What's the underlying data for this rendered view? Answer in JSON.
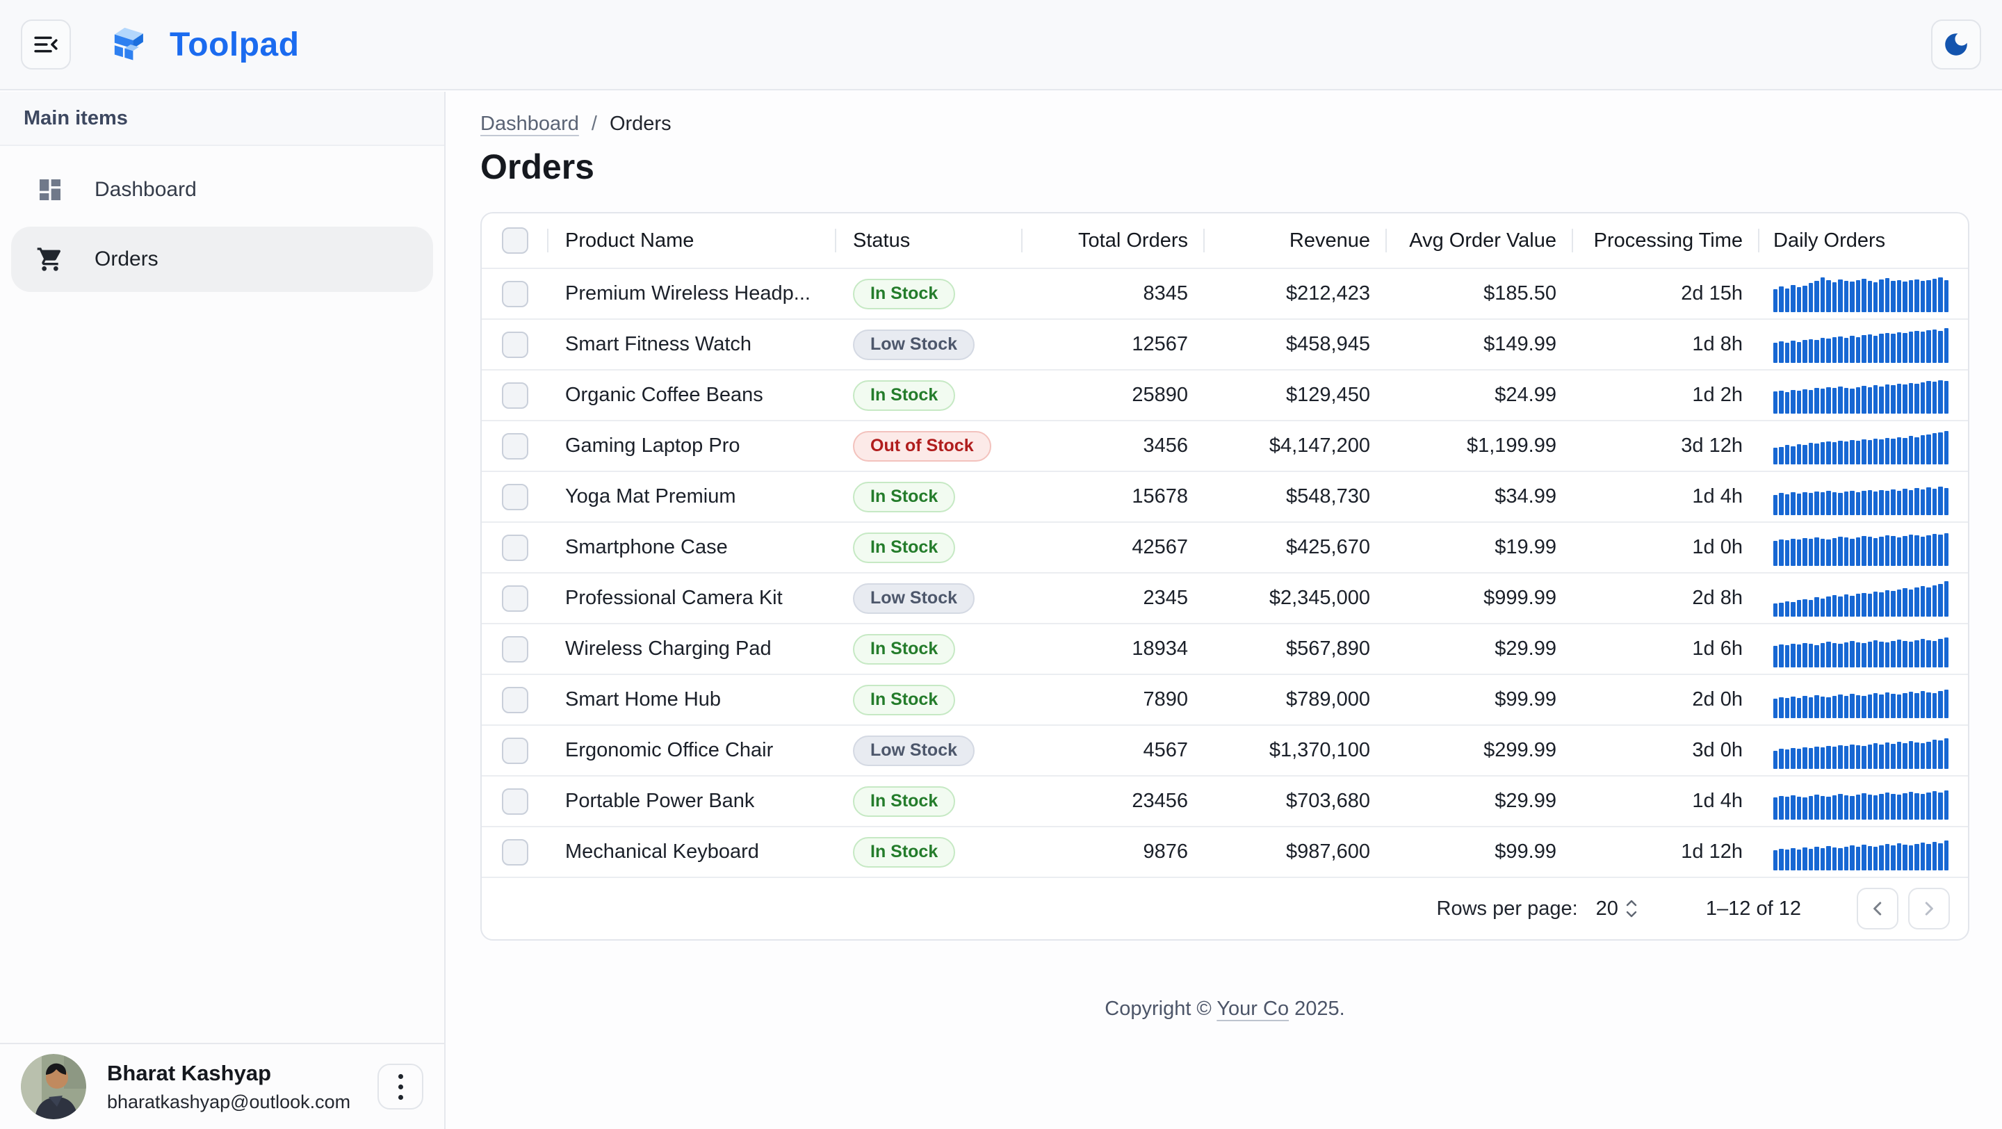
{
  "appbar": {
    "brand": "Toolpad",
    "menu_icon": "menu-collapse",
    "theme_icon": "dark-mode-moon"
  },
  "sidebar": {
    "section_label": "Main items",
    "items": [
      {
        "label": "Dashboard",
        "icon": "dashboard-icon",
        "selected": false
      },
      {
        "label": "Orders",
        "icon": "cart-icon",
        "selected": true
      }
    ],
    "user": {
      "name": "Bharat Kashyap",
      "email": "bharatkashyap@outlook.com"
    }
  },
  "breadcrumb": {
    "parent": "Dashboard",
    "separator": "/",
    "current": "Orders"
  },
  "page": {
    "title": "Orders"
  },
  "table": {
    "columns": [
      "Product Name",
      "Status",
      "Total Orders",
      "Revenue",
      "Avg Order Value",
      "Processing Time",
      "Daily Orders"
    ],
    "rows": [
      {
        "product": "Premium Wireless Headp...",
        "status": "In Stock",
        "status_type": "in",
        "total_orders": "8345",
        "revenue": "$212,423",
        "avg_order_value": "$185.50",
        "processing_time": "2d 15h",
        "spark": [
          62,
          70,
          65,
          75,
          68,
          72,
          80,
          85,
          95,
          88,
          82,
          90,
          86,
          84,
          88,
          92,
          86,
          82,
          90,
          94,
          85,
          88,
          83,
          87,
          90,
          85,
          88,
          92,
          95,
          87
        ]
      },
      {
        "product": "Smart Fitness Watch",
        "status": "Low Stock",
        "status_type": "low",
        "total_orders": "12567",
        "revenue": "$458,945",
        "avg_order_value": "$149.99",
        "processing_time": "1d 8h",
        "spark": [
          55,
          58,
          54,
          60,
          57,
          62,
          65,
          63,
          68,
          66,
          70,
          72,
          69,
          74,
          71,
          76,
          78,
          74,
          79,
          82,
          80,
          84,
          81,
          86,
          88,
          85,
          90,
          92,
          88,
          95
        ]
      },
      {
        "product": "Organic Coffee Beans",
        "status": "In Stock",
        "status_type": "in",
        "total_orders": "25890",
        "revenue": "$129,450",
        "avg_order_value": "$24.99",
        "processing_time": "1d 2h",
        "spark": [
          60,
          63,
          58,
          65,
          62,
          66,
          64,
          70,
          68,
          72,
          70,
          74,
          71,
          68,
          73,
          76,
          72,
          78,
          75,
          80,
          77,
          82,
          79,
          84,
          81,
          86,
          90,
          87,
          92,
          89
        ]
      },
      {
        "product": "Gaming Laptop Pro",
        "status": "Out of Stock",
        "status_type": "out",
        "total_orders": "3456",
        "revenue": "$4,147,200",
        "avg_order_value": "$1,199.99",
        "processing_time": "3d 12h",
        "spark": [
          45,
          48,
          52,
          50,
          55,
          53,
          58,
          56,
          60,
          63,
          60,
          65,
          62,
          67,
          64,
          69,
          66,
          71,
          68,
          73,
          70,
          75,
          72,
          77,
          74,
          79,
          82,
          85,
          88,
          92
        ]
      },
      {
        "product": "Yoga Mat Premium",
        "status": "In Stock",
        "status_type": "in",
        "total_orders": "15678",
        "revenue": "$548,730",
        "avg_order_value": "$34.99",
        "processing_time": "1d 4h",
        "spark": [
          55,
          60,
          57,
          62,
          58,
          63,
          60,
          65,
          62,
          66,
          63,
          60,
          64,
          67,
          62,
          66,
          68,
          64,
          69,
          66,
          70,
          67,
          72,
          69,
          74,
          71,
          76,
          73,
          78,
          75
        ]
      },
      {
        "product": "Smartphone Case",
        "status": "In Stock",
        "status_type": "in",
        "total_orders": "42567",
        "revenue": "$425,670",
        "avg_order_value": "$19.99",
        "processing_time": "1d 0h",
        "spark": [
          68,
          72,
          70,
          75,
          72,
          76,
          74,
          78,
          75,
          72,
          76,
          80,
          77,
          74,
          78,
          82,
          79,
          76,
          80,
          84,
          81,
          78,
          82,
          86,
          83,
          80,
          84,
          88,
          85,
          90
        ]
      },
      {
        "product": "Professional Camera Kit",
        "status": "Low Stock",
        "status_type": "low",
        "total_orders": "2345",
        "revenue": "$2,345,000",
        "avg_order_value": "$999.99",
        "processing_time": "2d 8h",
        "spark": [
          35,
          38,
          42,
          40,
          45,
          48,
          46,
          52,
          50,
          55,
          58,
          54,
          60,
          57,
          62,
          65,
          62,
          68,
          66,
          72,
          70,
          75,
          78,
          74,
          80,
          83,
          80,
          86,
          90,
          97
        ]
      },
      {
        "product": "Wireless Charging Pad",
        "status": "In Stock",
        "status_type": "in",
        "total_orders": "18934",
        "revenue": "$567,890",
        "avg_order_value": "$29.99",
        "processing_time": "1d 6h",
        "spark": [
          58,
          62,
          60,
          65,
          62,
          66,
          64,
          60,
          66,
          70,
          67,
          64,
          68,
          72,
          69,
          66,
          70,
          74,
          71,
          68,
          72,
          76,
          73,
          70,
          74,
          78,
          75,
          72,
          78,
          82
        ]
      },
      {
        "product": "Smart Home Hub",
        "status": "In Stock",
        "status_type": "in",
        "total_orders": "7890",
        "revenue": "$789,000",
        "avg_order_value": "$99.99",
        "processing_time": "2d 0h",
        "spark": [
          52,
          56,
          54,
          58,
          55,
          60,
          57,
          62,
          59,
          56,
          60,
          64,
          61,
          66,
          63,
          60,
          64,
          68,
          65,
          70,
          67,
          64,
          68,
          72,
          69,
          74,
          71,
          68,
          74,
          78
        ]
      },
      {
        "product": "Ergonomic Office Chair",
        "status": "Low Stock",
        "status_type": "low",
        "total_orders": "4567",
        "revenue": "$1,370,100",
        "avg_order_value": "$299.99",
        "processing_time": "3d 0h",
        "spark": [
          50,
          54,
          52,
          57,
          54,
          59,
          56,
          61,
          58,
          63,
          60,
          65,
          62,
          67,
          64,
          62,
          66,
          70,
          67,
          72,
          69,
          74,
          71,
          76,
          73,
          70,
          75,
          80,
          77,
          84
        ]
      },
      {
        "product": "Portable Power Bank",
        "status": "In Stock",
        "status_type": "in",
        "total_orders": "23456",
        "revenue": "$703,680",
        "avg_order_value": "$29.99",
        "processing_time": "1d 4h",
        "spark": [
          60,
          64,
          62,
          66,
          63,
          60,
          64,
          68,
          65,
          62,
          66,
          70,
          67,
          64,
          68,
          72,
          69,
          66,
          70,
          74,
          71,
          68,
          72,
          76,
          73,
          70,
          74,
          78,
          75,
          80
        ]
      },
      {
        "product": "Mechanical Keyboard",
        "status": "In Stock",
        "status_type": "in",
        "total_orders": "9876",
        "revenue": "$987,600",
        "avg_order_value": "$99.99",
        "processing_time": "1d 12h",
        "spark": [
          54,
          58,
          56,
          60,
          57,
          62,
          59,
          64,
          61,
          66,
          63,
          60,
          64,
          68,
          65,
          70,
          67,
          64,
          68,
          72,
          69,
          74,
          71,
          68,
          72,
          76,
          73,
          78,
          75,
          82
        ]
      }
    ],
    "pagination": {
      "rows_per_page_label": "Rows per page:",
      "rows_per_page": "20",
      "range": "1–12 of 12"
    }
  },
  "footer": {
    "prefix": "Copyright © ",
    "link": "Your Co",
    "suffix": " 2025."
  },
  "colors": {
    "brand_blue": "#1B6BEF",
    "spark_bar": "#1767D3",
    "chip_in_text": "#247C2B",
    "chip_low_text": "#4D576B",
    "chip_out_text": "#B01D1D",
    "moon_icon": "#1354AE"
  }
}
